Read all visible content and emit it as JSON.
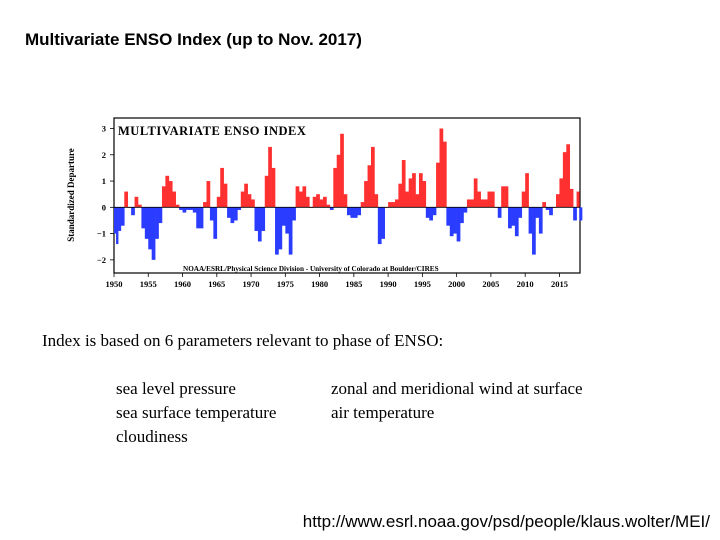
{
  "page": {
    "title": "Multivariate ENSO Index (up to Nov. 2017)",
    "intro": "Index is based on 6 parameters relevant to phase of ENSO:",
    "parameters_left": [
      "sea level pressure",
      "sea surface temperature",
      "cloudiness"
    ],
    "parameters_right": [
      "zonal and meridional wind at surface",
      "air temperature"
    ],
    "source_url": "http://www.esrl.noaa.gov/psd/people/klaus.wolter/MEI/"
  },
  "chart_data": {
    "type": "area",
    "title": "MULTIVARIATE ENSO INDEX",
    "credit": "NOAA/ESRL/Physical Science Division - University of Colorado at Boulder/CIRES",
    "ylabel": "Standardized Departure",
    "xlabel": "",
    "xlim": [
      1950,
      2018
    ],
    "ylim": [
      -2.5,
      3.4
    ],
    "yticks": [
      3,
      2,
      1,
      0,
      -1,
      -2
    ],
    "ytick_labels": [
      "3",
      "2",
      "1",
      "0",
      "−1",
      "−2"
    ],
    "xticks": [
      1950,
      1955,
      1960,
      1965,
      1970,
      1975,
      1980,
      1985,
      1990,
      1995,
      2000,
      2005,
      2010,
      2015
    ],
    "xtick_labels": [
      "1950",
      "1955",
      "1960",
      "1965",
      "1970",
      "1975",
      "1980",
      "1985",
      "1990",
      "1995",
      "2000",
      "2005",
      "2010",
      "2015"
    ],
    "positive_color": "#ff3030",
    "negative_color": "#2a3cff",
    "x": [
      1950.0,
      1950.3,
      1950.6,
      1951.0,
      1951.5,
      1952.0,
      1952.5,
      1953.0,
      1953.5,
      1954.0,
      1954.5,
      1955.0,
      1955.5,
      1956.0,
      1956.5,
      1957.0,
      1957.5,
      1958.0,
      1958.5,
      1959.0,
      1959.5,
      1960.0,
      1960.5,
      1961.0,
      1961.5,
      1962.0,
      1962.5,
      1963.0,
      1963.5,
      1964.0,
      1964.5,
      1965.0,
      1965.5,
      1966.0,
      1966.5,
      1967.0,
      1967.5,
      1968.0,
      1968.5,
      1969.0,
      1969.5,
      1970.0,
      1970.5,
      1971.0,
      1971.5,
      1972.0,
      1972.5,
      1973.0,
      1973.5,
      1974.0,
      1974.5,
      1975.0,
      1975.5,
      1976.0,
      1976.5,
      1977.0,
      1977.5,
      1978.0,
      1978.5,
      1979.0,
      1979.5,
      1980.0,
      1980.5,
      1981.0,
      1981.5,
      1982.0,
      1982.5,
      1983.0,
      1983.5,
      1984.0,
      1984.5,
      1985.0,
      1985.5,
      1986.0,
      1986.5,
      1987.0,
      1987.5,
      1988.0,
      1988.5,
      1989.0,
      1989.5,
      1990.0,
      1990.5,
      1991.0,
      1991.5,
      1992.0,
      1992.5,
      1993.0,
      1993.5,
      1994.0,
      1994.5,
      1995.0,
      1995.5,
      1996.0,
      1996.5,
      1997.0,
      1997.5,
      1998.0,
      1998.5,
      1999.0,
      1999.5,
      2000.0,
      2000.5,
      2001.0,
      2001.5,
      2002.0,
      2002.5,
      2003.0,
      2003.5,
      2004.0,
      2004.5,
      2005.0,
      2005.5,
      2006.0,
      2006.5,
      2007.0,
      2007.5,
      2008.0,
      2008.5,
      2009.0,
      2009.5,
      2010.0,
      2010.5,
      2011.0,
      2011.5,
      2012.0,
      2012.5,
      2013.0,
      2013.5,
      2014.0,
      2014.5,
      2015.0,
      2015.5,
      2016.0,
      2016.5,
      2017.0,
      2017.5,
      2017.9
    ],
    "values": [
      -1.0,
      -1.4,
      -0.9,
      -0.7,
      0.6,
      0.0,
      -0.3,
      0.4,
      0.1,
      -0.8,
      -1.2,
      -1.6,
      -2.0,
      -1.2,
      -0.6,
      0.8,
      1.2,
      1.0,
      0.6,
      0.1,
      -0.1,
      -0.2,
      -0.1,
      -0.1,
      -0.2,
      -0.8,
      -0.8,
      0.2,
      1.0,
      -0.5,
      -1.2,
      0.4,
      1.5,
      0.9,
      -0.4,
      -0.6,
      -0.5,
      -0.1,
      0.6,
      0.9,
      0.5,
      0.3,
      -0.9,
      -1.3,
      -0.9,
      1.2,
      2.3,
      1.5,
      -1.8,
      -1.6,
      -0.7,
      -1.0,
      -1.8,
      -0.5,
      0.8,
      0.6,
      0.8,
      0.4,
      0.0,
      0.4,
      0.5,
      0.3,
      0.4,
      0.1,
      -0.1,
      1.5,
      2.0,
      2.8,
      0.5,
      -0.3,
      -0.4,
      -0.4,
      -0.3,
      0.2,
      1.0,
      1.6,
      2.3,
      0.5,
      -1.4,
      -1.2,
      0.0,
      0.2,
      0.2,
      0.3,
      0.9,
      1.8,
      0.6,
      1.1,
      1.3,
      0.5,
      1.3,
      1.0,
      -0.4,
      -0.5,
      -0.3,
      1.7,
      3.0,
      2.5,
      -0.7,
      -1.1,
      -1.0,
      -1.3,
      -0.6,
      -0.2,
      0.3,
      0.3,
      1.1,
      0.6,
      0.3,
      0.3,
      0.6,
      0.6,
      0.0,
      -0.4,
      0.8,
      0.8,
      -0.8,
      -0.7,
      -1.1,
      -0.4,
      0.6,
      1.3,
      -1.0,
      -1.8,
      -0.4,
      -1.0,
      0.2,
      -0.1,
      -0.3,
      0.0,
      0.5,
      1.1,
      2.1,
      2.4,
      0.7,
      -0.5,
      0.6,
      -0.5
    ]
  }
}
